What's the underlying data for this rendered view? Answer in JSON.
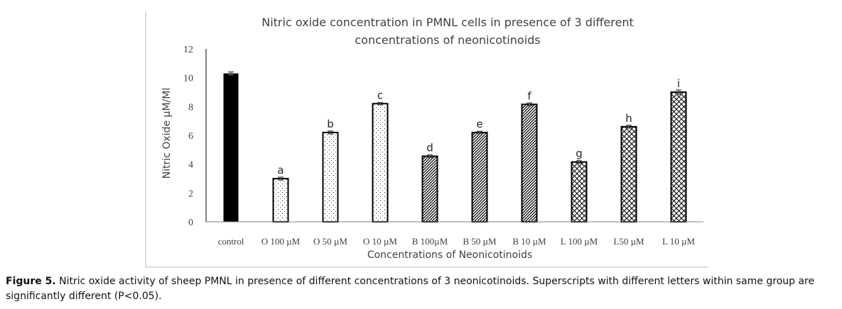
{
  "chart_data": {
    "type": "bar",
    "title": "Nitric oxide concentration in PMNL cells in presence of 3 different concentrations of neonicotinoids",
    "title_lines": [
      "Nitric oxide concentration in PMNL cells in presence of 3 different",
      "concentrations of neonicotinoids"
    ],
    "xlabel": "Concentrations of Neonicotinoids",
    "ylabel": "Nitric Oxide µM/Ml",
    "ylim": [
      0,
      12
    ],
    "yticks": [
      0,
      2,
      4,
      6,
      8,
      10,
      12
    ],
    "grid": false,
    "legend": "none",
    "categories": [
      "control",
      "O 100 µM",
      "O 50 µM",
      "O 10 µM",
      "B 100µM",
      "B 50 µM",
      "B 10 µM",
      "L 100 µM",
      "L50 µM",
      "L 10 µM"
    ],
    "values": [
      10.3,
      3.0,
      6.2,
      8.2,
      4.55,
      6.2,
      8.15,
      4.15,
      6.6,
      9.0
    ],
    "errors": [
      0.1,
      0.1,
      0.1,
      0.08,
      0.1,
      0.08,
      0.1,
      0.1,
      0.1,
      0.15
    ],
    "superscripts": [
      "",
      "a",
      "b",
      "c",
      "d",
      "e",
      "f",
      "g",
      "h",
      "i"
    ],
    "fill_patterns": [
      "solid",
      "dots",
      "dots",
      "dots",
      "diagonal",
      "diagonal",
      "diagonal",
      "crosshatch",
      "crosshatch",
      "crosshatch"
    ],
    "colors": {
      "bar_outline": "#000000",
      "control_fill": "#000000",
      "axis": "#808080",
      "error_bar": "#595959",
      "text": "#404040"
    }
  },
  "caption": {
    "label": "Figure 5.",
    "text": "Nitric oxide activity of sheep PMNL in presence of different concentrations of 3 neonicotinoids.  Superscripts with different letters within same group are significantly different (P<0.05)."
  }
}
